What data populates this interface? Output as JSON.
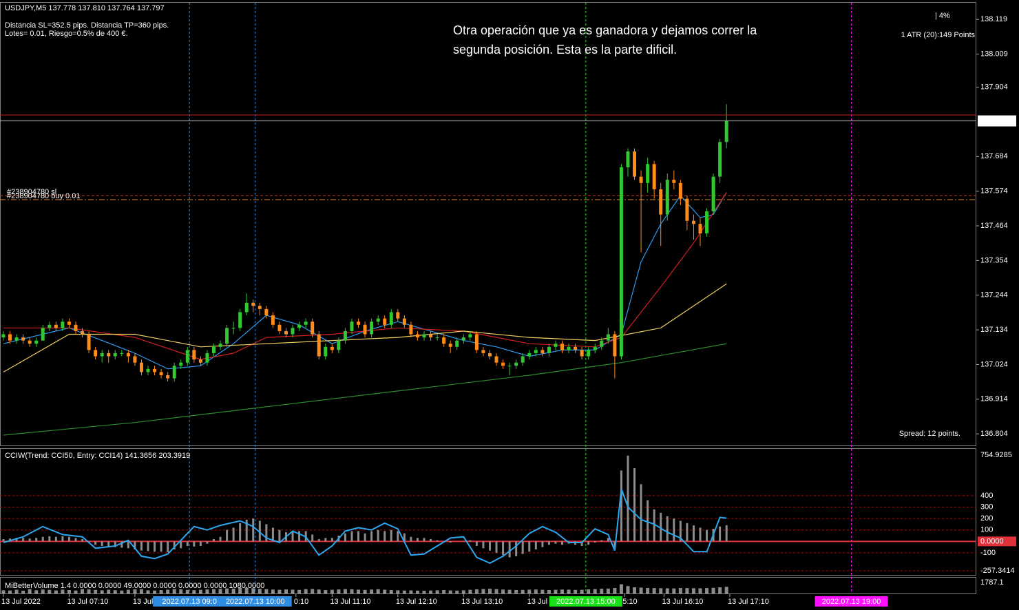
{
  "chart_data": {
    "type": "candlestick",
    "header": "USDJPY,M5  137.778 137.810 137.764 137.797",
    "info": [
      "Distancia SL=352.5 pips. Distancia TP=360 pips.",
      "Lotes= 0.01, Riesgo=0.5% de 400 €."
    ],
    "annotation": [
      "Otra operación que ya es ganadora y dejamos correr la",
      "segunda posición. Esta es la parte dificil."
    ],
    "risk": "| 4%",
    "atr": "1 ATR (20):149 Points",
    "spread": "Spread: 12 points.",
    "up_color": "#32c832",
    "down_color": "#ff8c1a",
    "candles": [
      [
        137.11,
        137.13,
        137.1,
        137.12
      ],
      [
        137.12,
        137.13,
        137.09,
        137.1
      ],
      [
        137.1,
        137.12,
        137.09,
        137.11
      ],
      [
        137.11,
        137.12,
        137.09,
        137.1
      ],
      [
        137.1,
        137.11,
        137.08,
        137.09
      ],
      [
        137.09,
        137.11,
        137.08,
        137.1
      ],
      [
        137.1,
        137.15,
        137.1,
        137.14
      ],
      [
        137.14,
        137.16,
        137.13,
        137.15
      ],
      [
        137.15,
        137.16,
        137.13,
        137.14
      ],
      [
        137.14,
        137.17,
        137.13,
        137.16
      ],
      [
        137.16,
        137.17,
        137.14,
        137.15
      ],
      [
        137.15,
        137.16,
        137.12,
        137.13
      ],
      [
        137.13,
        137.14,
        137.11,
        137.12
      ],
      [
        137.12,
        137.13,
        137.06,
        137.07
      ],
      [
        137.07,
        137.08,
        137.04,
        137.05
      ],
      [
        137.05,
        137.07,
        137.03,
        137.06
      ],
      [
        137.06,
        137.07,
        137.03,
        137.05
      ],
      [
        137.05,
        137.07,
        137.04,
        137.06
      ],
      [
        137.06,
        137.07,
        137.05,
        137.06
      ],
      [
        137.06,
        137.07,
        137.03,
        137.05
      ],
      [
        137.05,
        137.06,
        137.02,
        137.03
      ],
      [
        137.03,
        137.04,
        136.99,
        137.0
      ],
      [
        137.0,
        137.02,
        136.99,
        137.01
      ],
      [
        137.01,
        137.02,
        136.99,
        137.0
      ],
      [
        137.0,
        137.01,
        136.98,
        136.99
      ],
      [
        136.99,
        137.0,
        136.97,
        136.98
      ],
      [
        136.98,
        137.03,
        136.97,
        137.02
      ],
      [
        137.02,
        137.04,
        137.01,
        137.03
      ],
      [
        137.03,
        137.08,
        137.02,
        137.07
      ],
      [
        137.07,
        137.08,
        137.03,
        137.04
      ],
      [
        137.04,
        137.05,
        137.02,
        137.03
      ],
      [
        137.03,
        137.07,
        137.02,
        137.06
      ],
      [
        137.06,
        137.09,
        137.05,
        137.08
      ],
      [
        137.08,
        137.1,
        137.07,
        137.09
      ],
      [
        137.09,
        137.15,
        137.08,
        137.14
      ],
      [
        137.14,
        137.16,
        137.12,
        137.14
      ],
      [
        137.14,
        137.2,
        137.13,
        137.19
      ],
      [
        137.19,
        137.25,
        137.18,
        137.22
      ],
      [
        137.22,
        137.23,
        137.19,
        137.21
      ],
      [
        137.21,
        137.22,
        137.18,
        137.2
      ],
      [
        137.2,
        137.21,
        137.17,
        137.18
      ],
      [
        137.18,
        137.19,
        137.14,
        137.15
      ],
      [
        137.15,
        137.16,
        137.12,
        137.13
      ],
      [
        137.13,
        137.14,
        137.11,
        137.12
      ],
      [
        137.12,
        137.15,
        137.11,
        137.14
      ],
      [
        137.14,
        137.16,
        137.13,
        137.15
      ],
      [
        137.15,
        137.17,
        137.14,
        137.16
      ],
      [
        137.16,
        137.17,
        137.11,
        137.12
      ],
      [
        137.12,
        137.13,
        137.04,
        137.05
      ],
      [
        137.05,
        137.09,
        137.04,
        137.08
      ],
      [
        137.08,
        137.09,
        137.06,
        137.07
      ],
      [
        137.07,
        137.11,
        137.06,
        137.1
      ],
      [
        137.1,
        137.14,
        137.09,
        137.13
      ],
      [
        137.13,
        137.17,
        137.12,
        137.16
      ],
      [
        137.16,
        137.17,
        137.14,
        137.15
      ],
      [
        137.15,
        137.16,
        137.11,
        137.12
      ],
      [
        137.12,
        137.17,
        137.11,
        137.16
      ],
      [
        137.16,
        137.18,
        137.15,
        137.17
      ],
      [
        137.17,
        137.18,
        137.14,
        137.15
      ],
      [
        137.15,
        137.2,
        137.14,
        137.19
      ],
      [
        137.19,
        137.2,
        137.16,
        137.17
      ],
      [
        137.17,
        137.18,
        137.14,
        137.15
      ],
      [
        137.15,
        137.16,
        137.11,
        137.12
      ],
      [
        137.12,
        137.13,
        137.1,
        137.11
      ],
      [
        137.11,
        137.13,
        137.1,
        137.12
      ],
      [
        137.12,
        137.13,
        137.1,
        137.11
      ],
      [
        137.11,
        137.12,
        137.1,
        137.11
      ],
      [
        137.11,
        137.12,
        137.08,
        137.09
      ],
      [
        137.09,
        137.1,
        137.06,
        137.08
      ],
      [
        137.08,
        137.11,
        137.07,
        137.1
      ],
      [
        137.1,
        137.12,
        137.09,
        137.11
      ],
      [
        137.11,
        137.13,
        137.1,
        137.12
      ],
      [
        137.12,
        137.13,
        137.06,
        137.07
      ],
      [
        137.07,
        137.08,
        137.05,
        137.06
      ],
      [
        137.06,
        137.07,
        137.04,
        137.05
      ],
      [
        137.05,
        137.06,
        137.02,
        137.03
      ],
      [
        137.03,
        137.04,
        137.01,
        137.02
      ],
      [
        137.02,
        137.03,
        136.99,
        137.02
      ],
      [
        137.02,
        137.04,
        137.01,
        137.03
      ],
      [
        137.03,
        137.06,
        137.02,
        137.05
      ],
      [
        137.05,
        137.07,
        137.04,
        137.06
      ],
      [
        137.06,
        137.08,
        137.05,
        137.07
      ],
      [
        137.07,
        137.08,
        137.05,
        137.06
      ],
      [
        137.06,
        137.09,
        137.05,
        137.08
      ],
      [
        137.08,
        137.1,
        137.07,
        137.09
      ],
      [
        137.09,
        137.1,
        137.06,
        137.07
      ],
      [
        137.07,
        137.09,
        137.06,
        137.08
      ],
      [
        137.08,
        137.09,
        137.06,
        137.07
      ],
      [
        137.07,
        137.08,
        137.04,
        137.05
      ],
      [
        137.05,
        137.08,
        137.04,
        137.07
      ],
      [
        137.07,
        137.09,
        137.06,
        137.08
      ],
      [
        137.08,
        137.11,
        137.07,
        137.1
      ],
      [
        137.1,
        137.14,
        137.09,
        137.12
      ],
      [
        137.12,
        137.13,
        136.98,
        137.05
      ],
      [
        137.05,
        137.66,
        137.04,
        137.65
      ],
      [
        137.65,
        137.71,
        137.62,
        137.7
      ],
      [
        137.7,
        137.71,
        137.61,
        137.62
      ],
      [
        137.62,
        137.64,
        137.38,
        137.6
      ],
      [
        137.6,
        137.68,
        137.57,
        137.66
      ],
      [
        137.66,
        137.67,
        137.55,
        137.58
      ],
      [
        137.58,
        137.6,
        137.4,
        137.5
      ],
      [
        137.5,
        137.63,
        137.48,
        137.61
      ],
      [
        137.61,
        137.64,
        137.58,
        137.6
      ],
      [
        137.6,
        137.61,
        137.53,
        137.55
      ],
      [
        137.55,
        137.56,
        137.45,
        137.48
      ],
      [
        137.48,
        137.5,
        137.42,
        137.47
      ],
      [
        137.47,
        137.49,
        137.4,
        137.44
      ],
      [
        137.44,
        137.52,
        137.43,
        137.51
      ],
      [
        137.51,
        137.63,
        137.5,
        137.62
      ],
      [
        137.62,
        137.74,
        137.6,
        137.73
      ],
      [
        137.73,
        137.85,
        137.71,
        137.797
      ]
    ],
    "xlim": [
      -0.52,
      148
    ],
    "xticks": [
      {
        "value": 0,
        "label": "13 Jul 2022"
      },
      {
        "value": 10,
        "label": "13 Jul 07:10"
      },
      {
        "value": 20,
        "label": "13 Jul"
      },
      {
        "value": 44.5,
        "label": "0:10"
      },
      {
        "value": 50,
        "label": "13 Jul 11:10"
      },
      {
        "value": 60,
        "label": "13 Jul 12:10"
      },
      {
        "value": 70,
        "label": "13 Jul 13:10"
      },
      {
        "value": 80,
        "label": "13 Jul"
      },
      {
        "value": 94.5,
        "label": "5:10"
      },
      {
        "value": 100.5,
        "label": "13 Jul 16:10"
      },
      {
        "value": 110.5,
        "label": "13 Jul 17:10"
      }
    ],
    "ylim": [
      136.765,
      138.174
    ],
    "yticks": [
      136.804,
      136.914,
      137.024,
      137.134,
      137.244,
      137.354,
      137.464,
      137.574,
      137.684,
      137.904,
      138.009,
      138.119
    ],
    "moving_averages": [
      {
        "color": "#2a9df4",
        "x": [
          0,
          10,
          15,
          20,
          25,
          30,
          35,
          40,
          45,
          50,
          55,
          60,
          65,
          70,
          75,
          80,
          85,
          90,
          94,
          97,
          100,
          103,
          106,
          108,
          110
        ],
        "values": [
          137.09,
          137.14,
          137.1,
          137.06,
          137.01,
          137.02,
          137.09,
          137.18,
          137.15,
          137.09,
          137.13,
          137.16,
          137.13,
          137.1,
          137.08,
          137.05,
          137.07,
          137.07,
          137.12,
          137.35,
          137.47,
          137.56,
          137.49,
          137.5,
          137.57
        ]
      },
      {
        "color": "#d42020",
        "x": [
          0,
          10,
          20,
          30,
          35,
          40,
          50,
          60,
          70,
          80,
          90,
          94,
          100,
          105,
          110
        ],
        "values": [
          137.14,
          137.14,
          137.11,
          137.04,
          137.06,
          137.11,
          137.12,
          137.14,
          137.13,
          137.09,
          137.08,
          137.11,
          137.27,
          137.41,
          137.57
        ]
      },
      {
        "color": "#f0d060",
        "x": [
          0,
          10,
          20,
          30,
          40,
          50,
          60,
          70,
          80,
          90,
          100,
          105,
          110
        ],
        "values": [
          137.0,
          137.12,
          137.12,
          137.08,
          137.09,
          137.1,
          137.11,
          137.13,
          137.11,
          137.1,
          137.14,
          137.21,
          137.28
        ]
      },
      {
        "color": "#2e8b2e",
        "x": [
          0,
          20,
          40,
          60,
          80,
          94,
          110
        ],
        "values": [
          136.8,
          136.84,
          136.89,
          136.94,
          136.99,
          137.03,
          137.09
        ]
      }
    ],
    "orders": [
      {
        "label": "#238904780 sl",
        "price": 137.56,
        "color": "#c0392b"
      },
      {
        "label": "#238904780 buy 0.01",
        "price": 137.547,
        "color": "#e08a1e"
      }
    ],
    "separators": [
      {
        "x": 28.3,
        "label": "2022.07.13 09:0",
        "color": "#2f8de4"
      },
      {
        "x": 38.3,
        "label": "2022.07.13 10:00",
        "color": "#2f8de4"
      },
      {
        "x": 88.6,
        "label": "2022.07.13 15:00",
        "color": "#19e019"
      },
      {
        "x": 129,
        "label": "2022.07.13 19:00",
        "color": "#ff10ff"
      }
    ],
    "subcharts": [
      {
        "type": "histogram-line",
        "title": "CCIW(Trend: CCI50, Entry: CCI14) 141.3656 203.3919",
        "ylim": [
          -299,
          815
        ],
        "yticks": [
          754.9285,
          400,
          300,
          200,
          100,
          {
            "value": 0,
            "label": "0.0000"
          },
          -100,
          -257.3414
        ],
        "bar_color": "#8c8c8c",
        "values": [
          20,
          25,
          30,
          30,
          25,
          30,
          40,
          45,
          40,
          45,
          40,
          30,
          20,
          -10,
          -30,
          -40,
          -45,
          -50,
          -55,
          -60,
          -70,
          -80,
          -85,
          -90,
          -90,
          -95,
          -70,
          -60,
          -40,
          -45,
          -40,
          -20,
          20,
          40,
          100,
          120,
          160,
          190,
          200,
          180,
          150,
          120,
          100,
          80,
          90,
          90,
          90,
          60,
          20,
          30,
          30,
          50,
          70,
          90,
          90,
          70,
          90,
          100,
          90,
          100,
          90,
          70,
          40,
          30,
          30,
          20,
          10,
          0,
          -10,
          0,
          5,
          10,
          -40,
          -60,
          -80,
          -100,
          -120,
          -140,
          -130,
          -110,
          -90,
          -70,
          -50,
          -30,
          -20,
          -30,
          -20,
          -30,
          -40,
          -30,
          -10,
          10,
          30,
          -50,
          620,
          750,
          640,
          500,
          360,
          280,
          250,
          220,
          200,
          180,
          160,
          140,
          120,
          100,
          110,
          130,
          141.3656
        ],
        "line": {
          "color": "#2aa8f0",
          "x": [
            0,
            3,
            6,
            9,
            12,
            14,
            17,
            19,
            21,
            23,
            25,
            27,
            29,
            31,
            33,
            36,
            38,
            40,
            42,
            44,
            46,
            48,
            50,
            52,
            54,
            56,
            58,
            60,
            62,
            64,
            66,
            68,
            70,
            72,
            74,
            76,
            78,
            80,
            82,
            84,
            86,
            88,
            90,
            92,
            93,
            94,
            95,
            97,
            99,
            101,
            103,
            105,
            107,
            108,
            109,
            110
          ],
          "values": [
            -10,
            40,
            130,
            60,
            40,
            -60,
            -40,
            10,
            -130,
            -150,
            -110,
            10,
            130,
            100,
            140,
            180,
            130,
            30,
            -10,
            90,
            40,
            -120,
            -40,
            90,
            120,
            100,
            160,
            110,
            -120,
            -110,
            -40,
            30,
            40,
            -140,
            -190,
            -130,
            -40,
            70,
            130,
            80,
            -10,
            -10,
            110,
            60,
            -80,
            460,
            300,
            190,
            150,
            80,
            30,
            -90,
            -90,
            60,
            210,
            203.3919
          ]
        }
      },
      {
        "type": "bar",
        "title": "MiBetterVolume 1.4 0.0000 0.0000 49.0000 0.0000 0.0000 0.0000 1080.0000",
        "ylim": [
          0,
          1787.1
        ],
        "yticks": [
          1787.1
        ],
        "color": "#8c8c8c",
        "values": [
          520,
          480,
          610,
          450,
          700,
          530,
          640,
          590,
          500,
          620,
          560,
          480,
          700,
          650,
          580,
          520,
          610,
          540,
          480,
          600,
          660,
          700,
          520,
          480,
          560,
          610,
          720,
          680,
          590,
          540,
          600,
          650,
          700,
          760,
          820,
          780,
          900,
          950,
          870,
          760,
          700,
          640,
          600,
          650,
          620,
          580,
          700,
          720,
          640,
          560,
          600,
          650,
          700,
          680,
          620,
          580,
          640,
          690,
          610,
          560,
          520,
          480,
          500,
          460,
          440,
          480,
          520,
          560,
          500,
          470,
          520,
          600,
          680,
          720,
          760,
          700,
          640,
          600,
          560,
          580,
          620,
          640,
          600,
          560,
          600,
          640,
          620,
          580,
          600,
          660,
          700,
          760,
          800,
          900,
          1500,
          1200,
          1000,
          950,
          900,
          880,
          860,
          840,
          820,
          900,
          880,
          860,
          840,
          880,
          920,
          1000,
          1080
        ]
      }
    ]
  }
}
